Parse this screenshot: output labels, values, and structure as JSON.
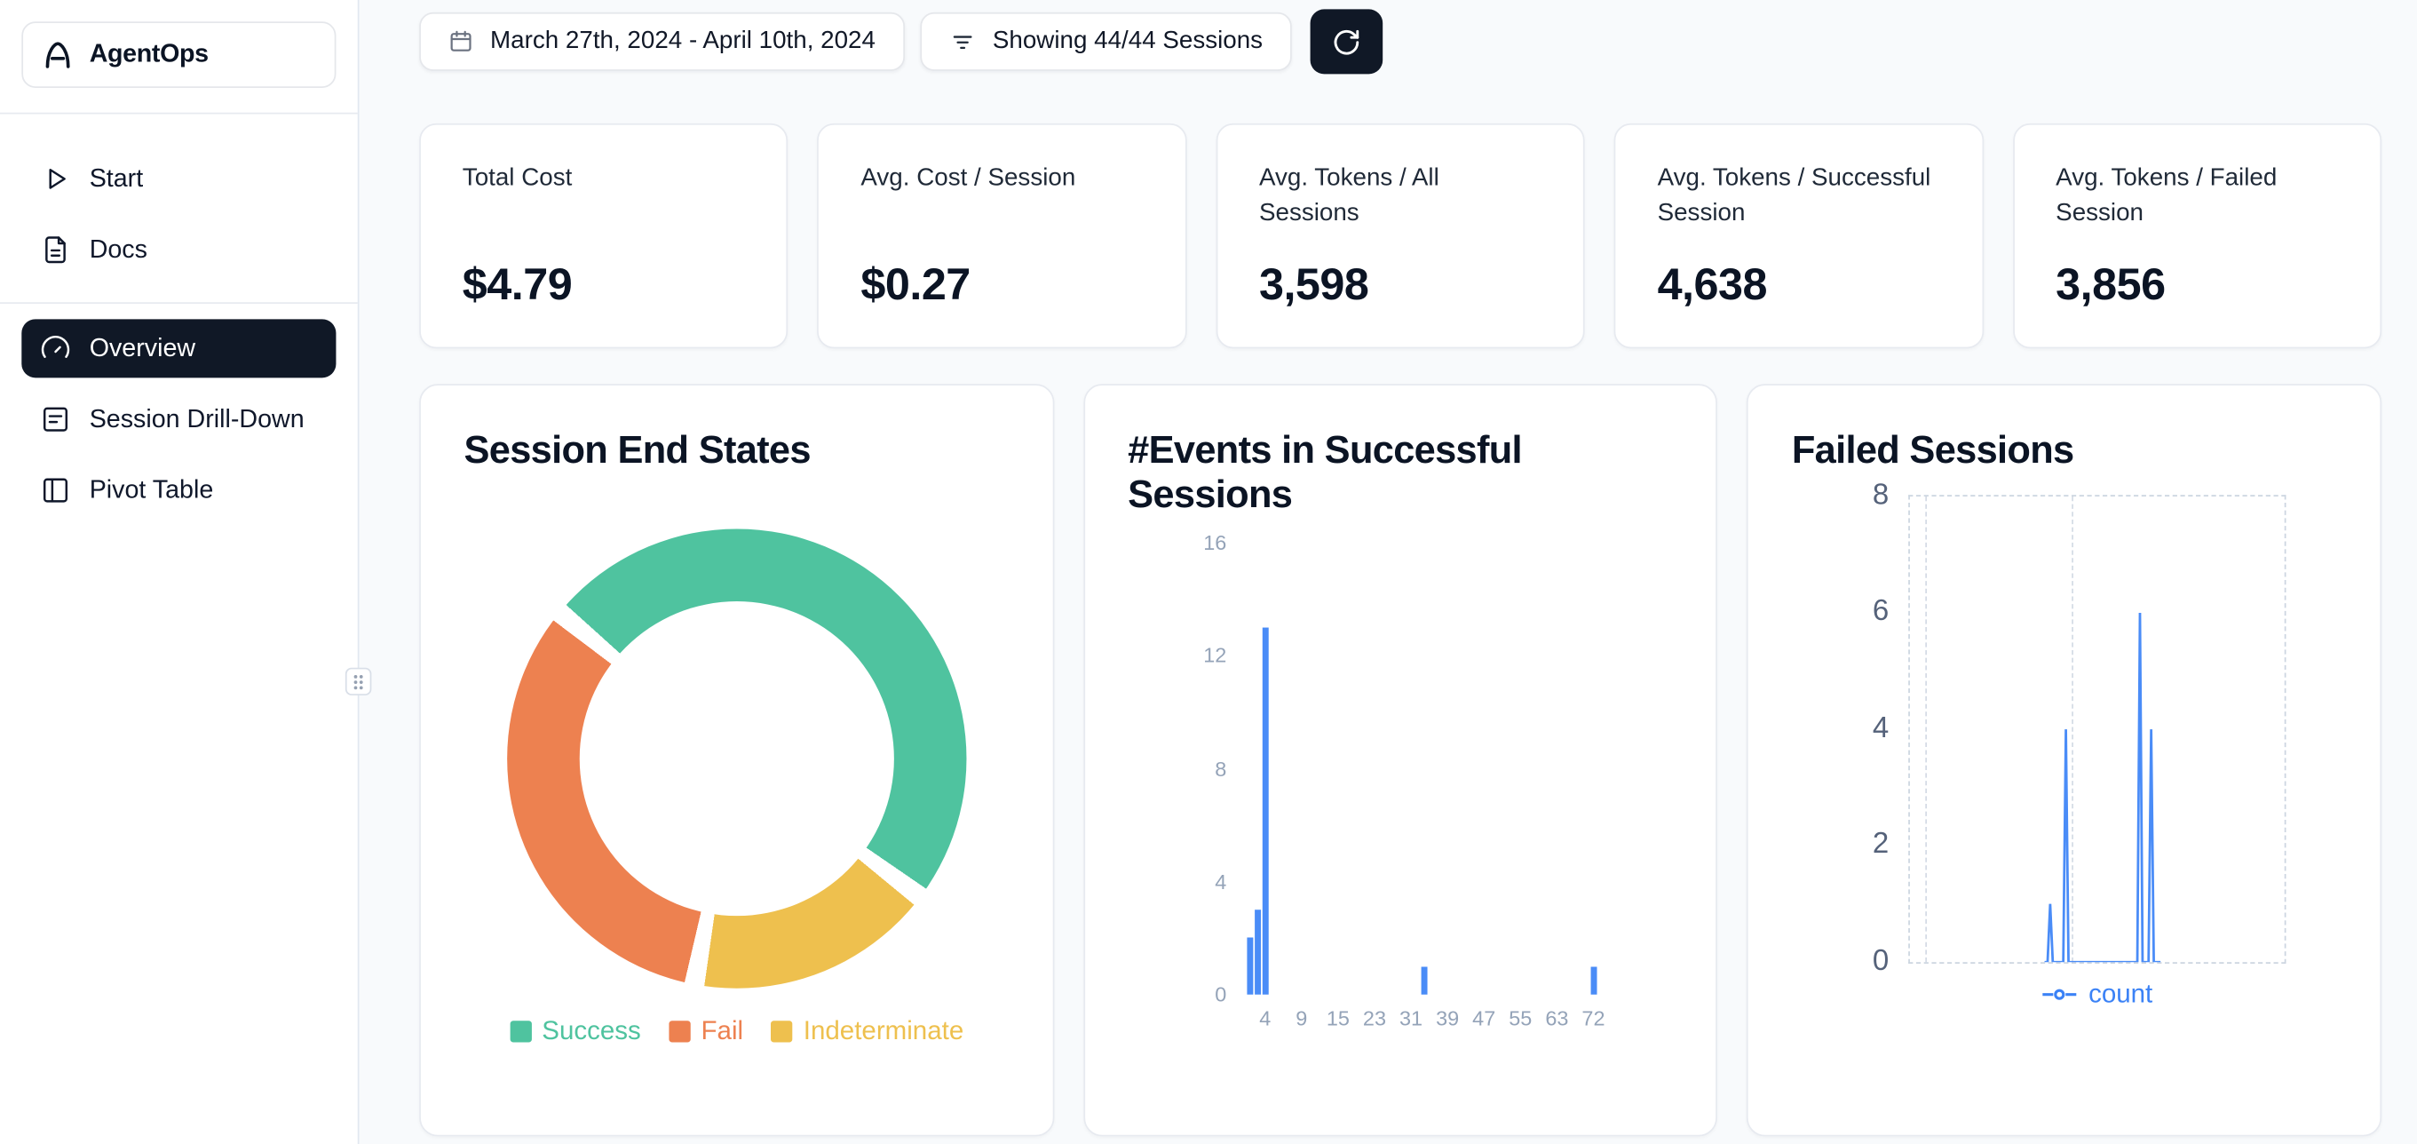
{
  "app": {
    "name": "AgentOps"
  },
  "sidebar": {
    "items": [
      {
        "label": "Start"
      },
      {
        "label": "Docs"
      },
      {
        "label": "Overview",
        "active": true
      },
      {
        "label": "Session Drill-Down"
      },
      {
        "label": "Pivot Table"
      }
    ]
  },
  "toolbar": {
    "date_range": "March 27th, 2024 - April 10th, 2024",
    "sessions_filter": "Showing 44/44 Sessions"
  },
  "stats": [
    {
      "label": "Total Cost",
      "value": "$4.79"
    },
    {
      "label": "Avg. Cost / Session",
      "value": "$0.27"
    },
    {
      "label": "Avg. Tokens / All Sessions",
      "value": "3,598"
    },
    {
      "label": "Avg. Tokens / Successful Session",
      "value": "4,638"
    },
    {
      "label": "Avg. Tokens / Failed Session",
      "value": "3,856"
    }
  ],
  "chart_data": [
    {
      "type": "pie",
      "title": "Session End States",
      "donut": true,
      "slices": [
        {
          "label": "Success",
          "pct": 50,
          "color": "#4fc39f"
        },
        {
          "label": "Fail",
          "pct": 33,
          "color": "#ed8150"
        },
        {
          "label": "Indeterminate",
          "pct": 17,
          "color": "#eec04e"
        }
      ],
      "legend_position": "bottom",
      "start_deg": 312,
      "gap_deg": 5,
      "draw_order": [
        0,
        2,
        1
      ]
    },
    {
      "type": "bar",
      "title": "#Events in Successful Sessions",
      "bars": [
        {
          "x": 2,
          "count": 2
        },
        {
          "x": 3,
          "count": 3
        },
        {
          "x": 4,
          "count": 13
        },
        {
          "x": 34,
          "count": 1
        },
        {
          "x": 72,
          "count": 1
        }
      ],
      "xticks": [
        4,
        9,
        15,
        23,
        31,
        39,
        47,
        55,
        63,
        72
      ],
      "yticks": [
        0,
        4,
        8,
        12,
        16
      ],
      "ylim": [
        0,
        16
      ],
      "grid": false,
      "color": "#4a8cf7"
    },
    {
      "type": "line",
      "title": "Failed Sessions",
      "legend": [
        "count"
      ],
      "legend_position": "bottom",
      "yticks": [
        0,
        2,
        4,
        6,
        8
      ],
      "ylim": [
        0,
        8
      ],
      "spikes": [
        {
          "x_frac": 0.375,
          "count": 1
        },
        {
          "x_frac": 0.417,
          "count": 4
        },
        {
          "x_frac": 0.615,
          "count": 6
        },
        {
          "x_frac": 0.645,
          "count": 4
        }
      ],
      "baseline_span": [
        0.36,
        0.67
      ],
      "grid": "dashed",
      "color": "#4a8cf7"
    }
  ]
}
